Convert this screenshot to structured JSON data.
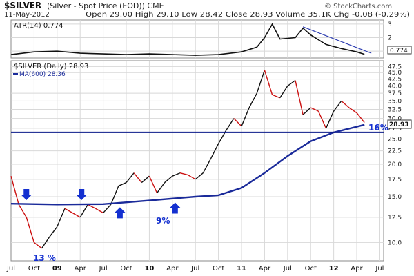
{
  "header": {
    "symbol": "$SILVER",
    "description": "(Silver - Spot Price (EOD)) CME",
    "date": "11-May-2012",
    "quote": "Open 29.00  High 29.10  Low 28.42  Close 28.93  Volume 35.1K  Chg -0.08 (-0.29%)",
    "watermark": "© StockCharts.com"
  },
  "atr_panel": {
    "label": "ATR(14) 0.774",
    "last_value_label": "0.774"
  },
  "price_panel": {
    "label": "$SILVER (Daily) 28.93",
    "ma_label": "MA(600) 28.36",
    "last_value_label": "28.93"
  },
  "annotations": {
    "pct_13": "13 %",
    "pct_9": "9%",
    "pct_16": "16%"
  },
  "colors": {
    "price_up": "#111111",
    "price_down": "#cc1111",
    "ma_line": "#1a2a9a",
    "support_line": "#0a1a8a",
    "arrows": "#1430d0",
    "atr_line": "#111111",
    "atr_trendline": "#2a3ab0",
    "grid": "#d8d8d8"
  },
  "chart_data": [
    {
      "type": "line",
      "title": "ATR(14) 0.774",
      "y_ticks": [
        1,
        2,
        3
      ],
      "ylim": [
        0.5,
        3.3
      ],
      "series": [
        {
          "name": "ATR(14)",
          "x": [
            "2008-07",
            "2008-10",
            "2009-01",
            "2009-04",
            "2009-07",
            "2009-10",
            "2010-01",
            "2010-04",
            "2010-07",
            "2010-10",
            "2011-01",
            "2011-03",
            "2011-04",
            "2011-05",
            "2011-06",
            "2011-08",
            "2011-09",
            "2011-10",
            "2011-12",
            "2012-02",
            "2012-04",
            "2012-05"
          ],
          "values": [
            0.75,
            0.95,
            1.0,
            0.85,
            0.8,
            0.75,
            0.8,
            0.75,
            0.7,
            0.75,
            0.95,
            1.3,
            2.0,
            3.0,
            1.9,
            2.0,
            2.7,
            2.2,
            1.5,
            1.2,
            0.95,
            0.774
          ]
        }
      ]
    },
    {
      "type": "line",
      "title": "$SILVER (Daily) 28.93",
      "x_tick_labels": [
        "Jul",
        "Oct",
        "09",
        "Apr",
        "Jul",
        "Oct",
        "10",
        "Apr",
        "Jul",
        "Oct",
        "11",
        "Apr",
        "Jul",
        "Oct",
        "12",
        "Apr",
        "Jul"
      ],
      "y_ticks": [
        10.0,
        12.5,
        15.0,
        17.5,
        20.0,
        22.5,
        25.0,
        27.5,
        30.0,
        32.5,
        35.0,
        37.5,
        40.0,
        42.5,
        45.0,
        47.5
      ],
      "y_scale": "log",
      "ylim": [
        8.5,
        50
      ],
      "series": [
        {
          "name": "$SILVER (Daily)",
          "x": [
            "2008-07",
            "2008-08",
            "2008-09",
            "2008-10",
            "2008-11",
            "2008-12",
            "2009-01",
            "2009-02",
            "2009-03",
            "2009-04",
            "2009-05",
            "2009-06",
            "2009-07",
            "2009-08",
            "2009-09",
            "2009-10",
            "2009-11",
            "2009-12",
            "2010-01",
            "2010-02",
            "2010-03",
            "2010-04",
            "2010-05",
            "2010-06",
            "2010-07",
            "2010-08",
            "2010-09",
            "2010-10",
            "2010-11",
            "2010-12",
            "2011-01",
            "2011-02",
            "2011-03",
            "2011-04",
            "2011-05",
            "2011-06",
            "2011-07",
            "2011-08",
            "2011-09",
            "2011-10",
            "2011-11",
            "2011-12",
            "2012-01",
            "2012-02",
            "2012-03",
            "2012-04",
            "2012-05"
          ],
          "values": [
            18.0,
            14.0,
            12.5,
            10.0,
            9.5,
            10.5,
            11.5,
            13.5,
            13.0,
            12.5,
            14.0,
            13.5,
            13.0,
            14.0,
            16.5,
            17.0,
            18.5,
            17.0,
            18.0,
            15.5,
            17.0,
            18.0,
            18.5,
            18.2,
            17.5,
            18.5,
            21.0,
            24.0,
            27.0,
            30.0,
            28.0,
            33.0,
            37.5,
            46.0,
            37.0,
            36.0,
            40.0,
            42.0,
            31.0,
            33.0,
            32.0,
            27.5,
            32.0,
            35.0,
            33.0,
            31.5,
            28.93
          ]
        },
        {
          "name": "MA(600)",
          "x": [
            "2008-07",
            "2009-01",
            "2009-07",
            "2010-01",
            "2010-07",
            "2010-10",
            "2011-01",
            "2011-04",
            "2011-07",
            "2011-10",
            "2012-01",
            "2012-05"
          ],
          "values": [
            14.1,
            14.0,
            14.05,
            14.5,
            15.0,
            15.2,
            16.2,
            18.5,
            21.5,
            24.5,
            26.5,
            28.36
          ]
        },
        {
          "name": "Support",
          "x": [
            "2008-07",
            "2012-05"
          ],
          "values": [
            26.5,
            26.5
          ]
        }
      ]
    }
  ]
}
